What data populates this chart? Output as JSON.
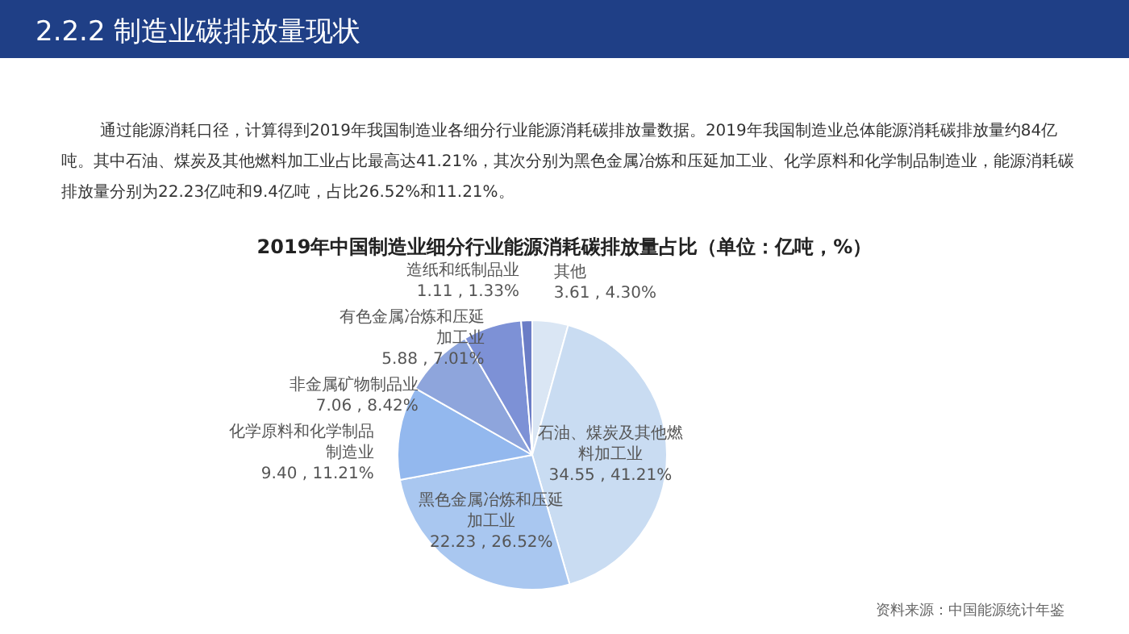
{
  "chart_data": {
    "type": "pie",
    "title": "2019年中国制造业细分行业能源消耗碳排放量占比（单位：亿吨，%）",
    "annotations": [
      "2.2.2 制造业碳排放量现状",
      "通过能源消耗口径，计算得到2019年我国制造业各细分行业能源消耗碳排放量数据。2019年我国制造业总体能源消耗碳排放量约84亿吨。其中石油、煤炭及其他燃料加工业占比最高达41.21%，其次分别为黑色金属冶炼和压延加工业、化学原料和化学制品制造业，能源消耗碳排放量分别为22.23亿吨和9.4亿吨，占比26.52%和11.21%。",
      "资料来源：中国能源统计年鉴"
    ],
    "categories": [
      "其他",
      "石油、煤炭及其他燃料加工业",
      "黑色金属冶炼和压延加工业",
      "化学原料和化学制品制造业",
      "非金属矿物制品业",
      "有色金属冶炼和压延加工业",
      "造纸和纸制品业"
    ],
    "values": [
      3.61,
      34.55,
      22.23,
      9.4,
      7.06,
      5.88,
      1.11
    ],
    "value_labels": [
      "3.61 , 4.30%",
      "34.55 , 41.21%",
      "22.23 , 26.52%",
      "9.40 , 11.21%",
      "7.06 , 8.42%",
      "5.88 , 7.01%",
      "1.11 , 1.33%"
    ],
    "colors": [
      "#dae6f4",
      "#c9dcf2",
      "#a9c7f0",
      "#93b8ee",
      "#8ea5dc",
      "#7d91d6",
      "#6b7dc6"
    ],
    "legend": false
  }
}
